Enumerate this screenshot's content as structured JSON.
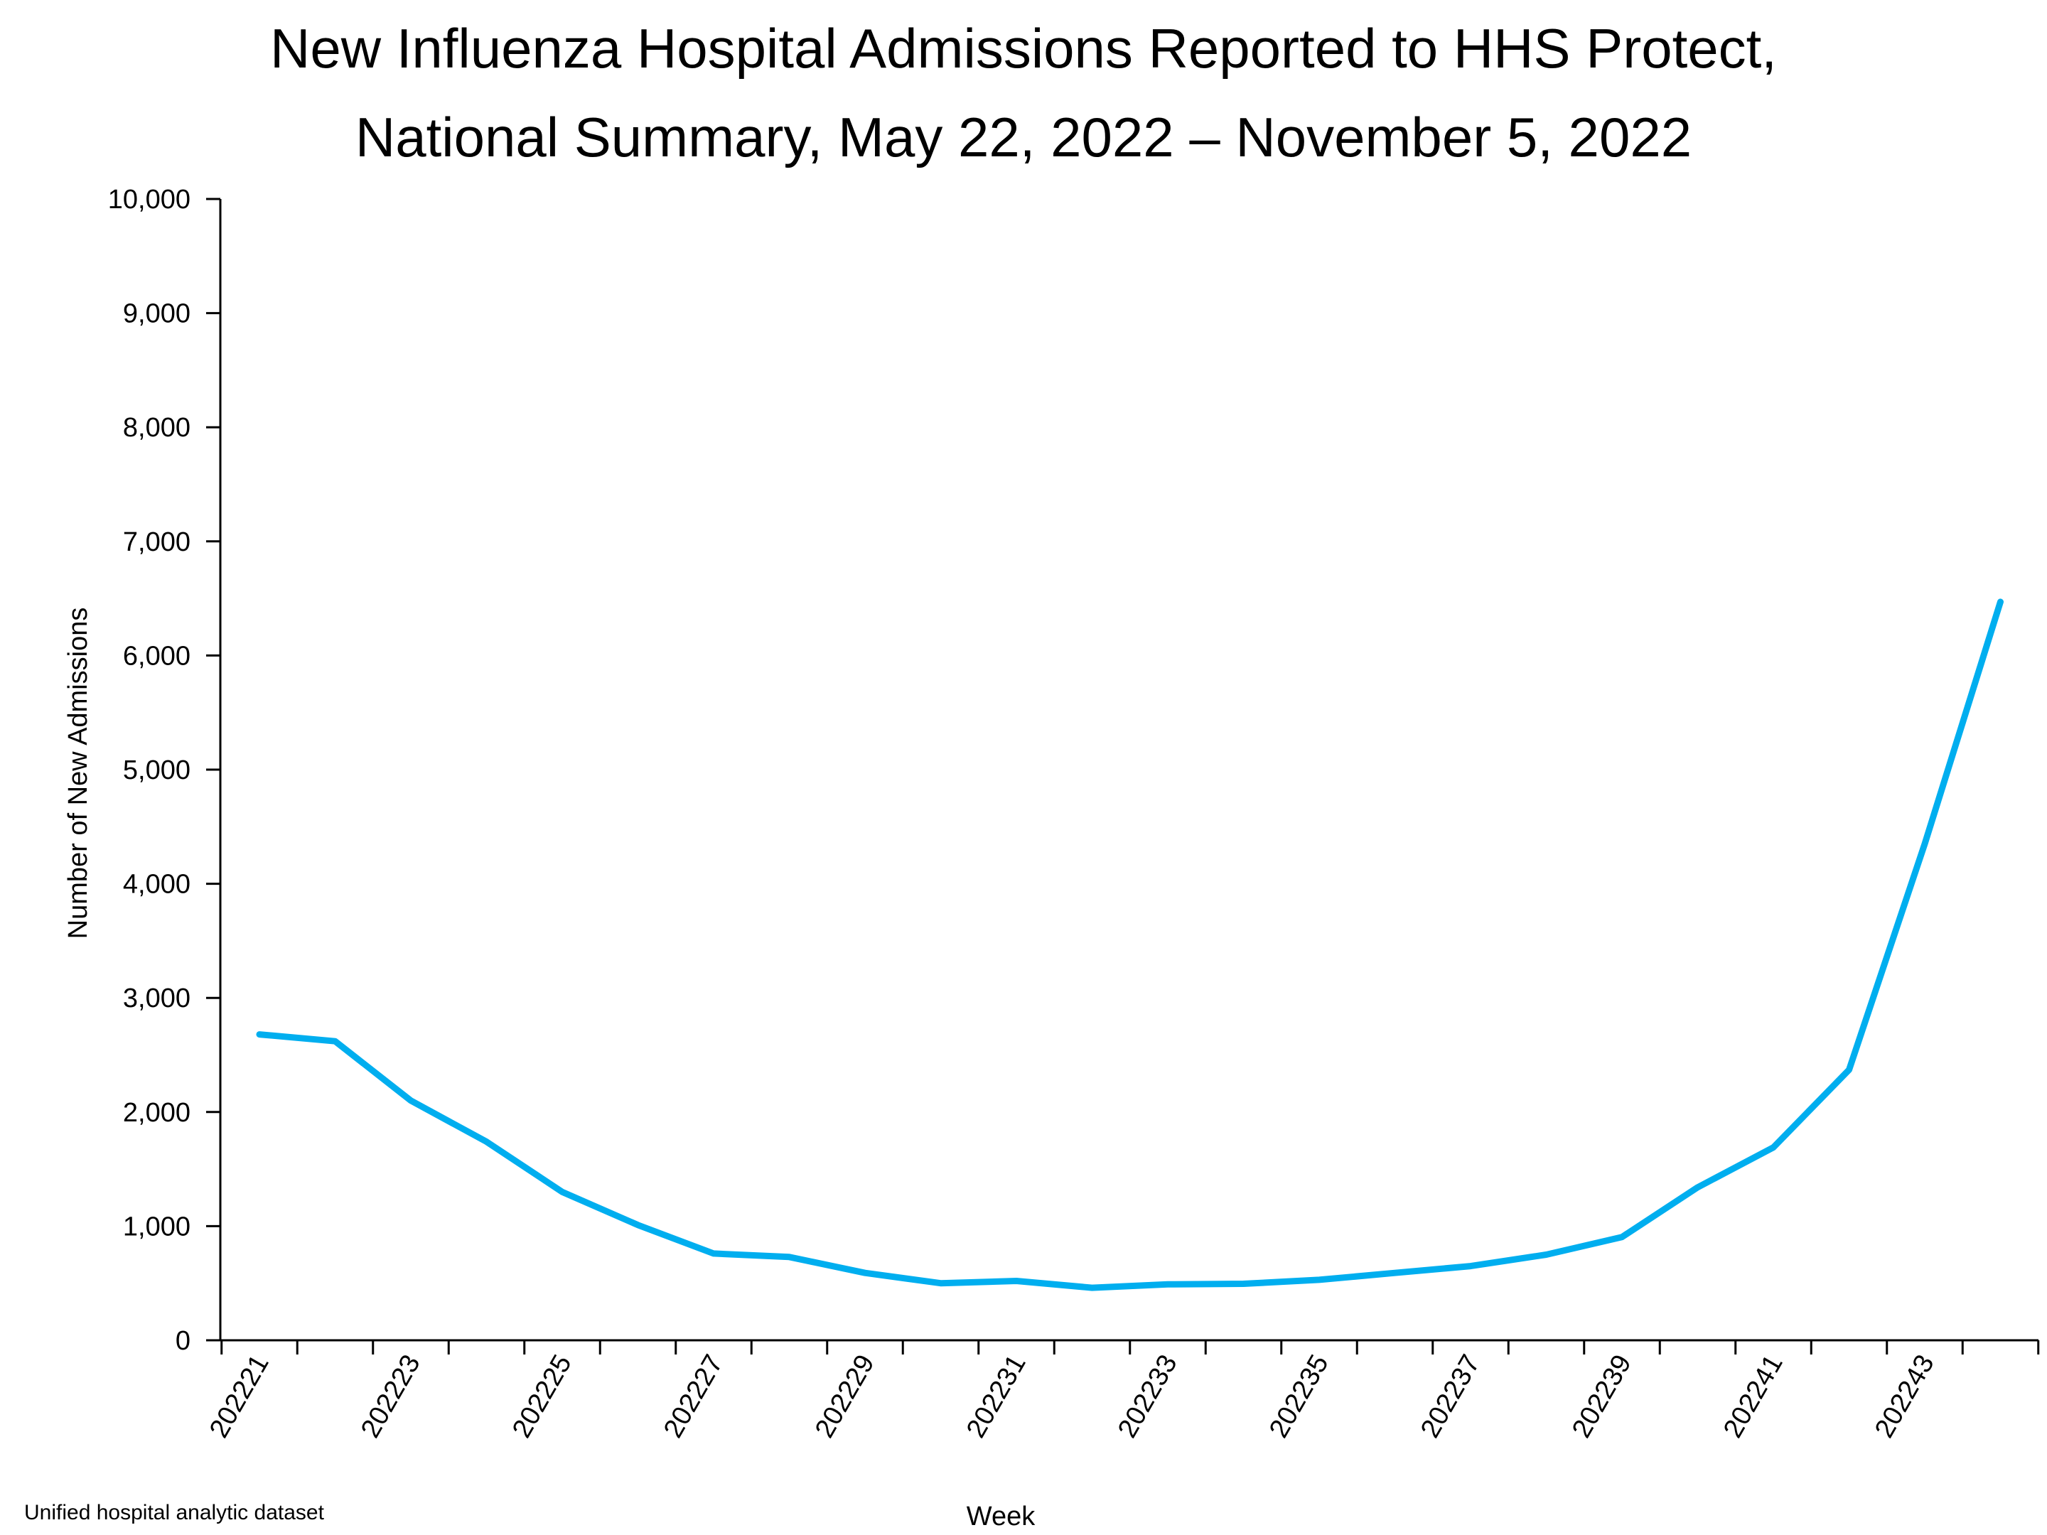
{
  "chart_data": {
    "type": "line",
    "title_lines": [
      "New Influenza Hospital Admissions Reported to HHS Protect,",
      "National Summary, May 22, 2022 – November 5, 2022"
    ],
    "xlabel": "Week",
    "ylabel": "Number of New Admissions",
    "ylim": [
      0,
      10000
    ],
    "y_ticks": [
      0,
      1000,
      2000,
      3000,
      4000,
      5000,
      6000,
      7000,
      8000,
      9000,
      10000
    ],
    "y_tick_labels": [
      "0",
      "1,000",
      "2,000",
      "3,000",
      "4,000",
      "5,000",
      "6,000",
      "7,000",
      "8,000",
      "9,000",
      "10,000"
    ],
    "x_tick_labels": [
      "202221",
      "202223",
      "202225",
      "202227",
      "202229",
      "202231",
      "202233",
      "202235",
      "202237",
      "202239",
      "202241",
      "202243"
    ],
    "x": [
      "202221",
      "202222",
      "202223",
      "202224",
      "202225",
      "202226",
      "202227",
      "202228",
      "202229",
      "202230",
      "202231",
      "202232",
      "202233",
      "202234",
      "202235",
      "202236",
      "202237",
      "202238",
      "202239",
      "202240",
      "202241",
      "202242",
      "202243",
      "202244"
    ],
    "series": [
      {
        "color": "#00aeef",
        "values": [
          2680,
          2620,
          2100,
          1740,
          1300,
          1010,
          760,
          730,
          590,
          500,
          520,
          460,
          490,
          495,
          530,
          590,
          650,
          750,
          905,
          1340,
          1690,
          2370,
          4350,
          6470
        ]
      }
    ],
    "grid": false,
    "legend": "none"
  },
  "source_note": "Unified hospital analytic dataset"
}
